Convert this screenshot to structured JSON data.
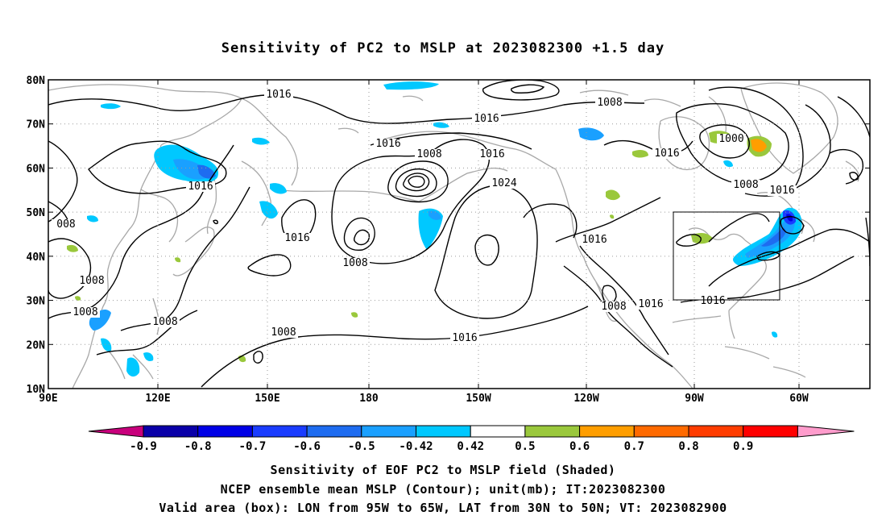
{
  "title": "Sensitivity of PC2 to MSLP at 2023082300 +1.5 day",
  "map": {
    "lat_labels": [
      "80N",
      "70N",
      "60N",
      "50N",
      "40N",
      "30N",
      "20N",
      "10N"
    ],
    "lon_labels": [
      "90E",
      "120E",
      "150E",
      "180",
      "150W",
      "120W",
      "90W",
      "60W"
    ],
    "contour_labels": [
      {
        "text": "1016"
      },
      {
        "text": "1008"
      },
      {
        "text": "1016"
      },
      {
        "text": "1016"
      },
      {
        "text": "1008"
      },
      {
        "text": "1016"
      },
      {
        "text": "1016"
      },
      {
        "text": "1000"
      },
      {
        "text": "1008"
      },
      {
        "text": "1016"
      },
      {
        "text": "1016"
      },
      {
        "text": "1024"
      },
      {
        "text": "008"
      },
      {
        "text": "1016"
      },
      {
        "text": "1016"
      },
      {
        "text": "1008"
      },
      {
        "text": "1008"
      },
      {
        "text": "1008"
      },
      {
        "text": "1008"
      },
      {
        "text": "1008"
      },
      {
        "text": "1016"
      },
      {
        "text": "1016"
      },
      {
        "text": "1008"
      },
      {
        "text": "1016"
      }
    ]
  },
  "colorbar": {
    "labels": [
      "-0.9",
      "-0.8",
      "-0.7",
      "-0.6",
      "-0.5",
      "-0.42",
      "0.42",
      "0.5",
      "0.6",
      "0.7",
      "0.8",
      "0.9"
    ],
    "colors": [
      "#0a00a8",
      "#0000e6",
      "#1a3cff",
      "#1e6cf0",
      "#1aa0ff",
      "#00c8ff",
      "#ffffff",
      "#9ac83c",
      "#ff9e00",
      "#ff6a00",
      "#ff3c00",
      "#ff0000"
    ],
    "low_color": "#c8007c",
    "high_color": "#ff9ccc"
  },
  "captions": [
    "Sensitivity of EOF PC2 to MSLP field (Shaded)",
    "NCEP ensemble mean MSLP (Contour); unit(mb); IT:2023082300",
    "Valid area (box): LON from 95W to 65W, LAT from 30N to 50N; VT: 2023082900"
  ]
}
